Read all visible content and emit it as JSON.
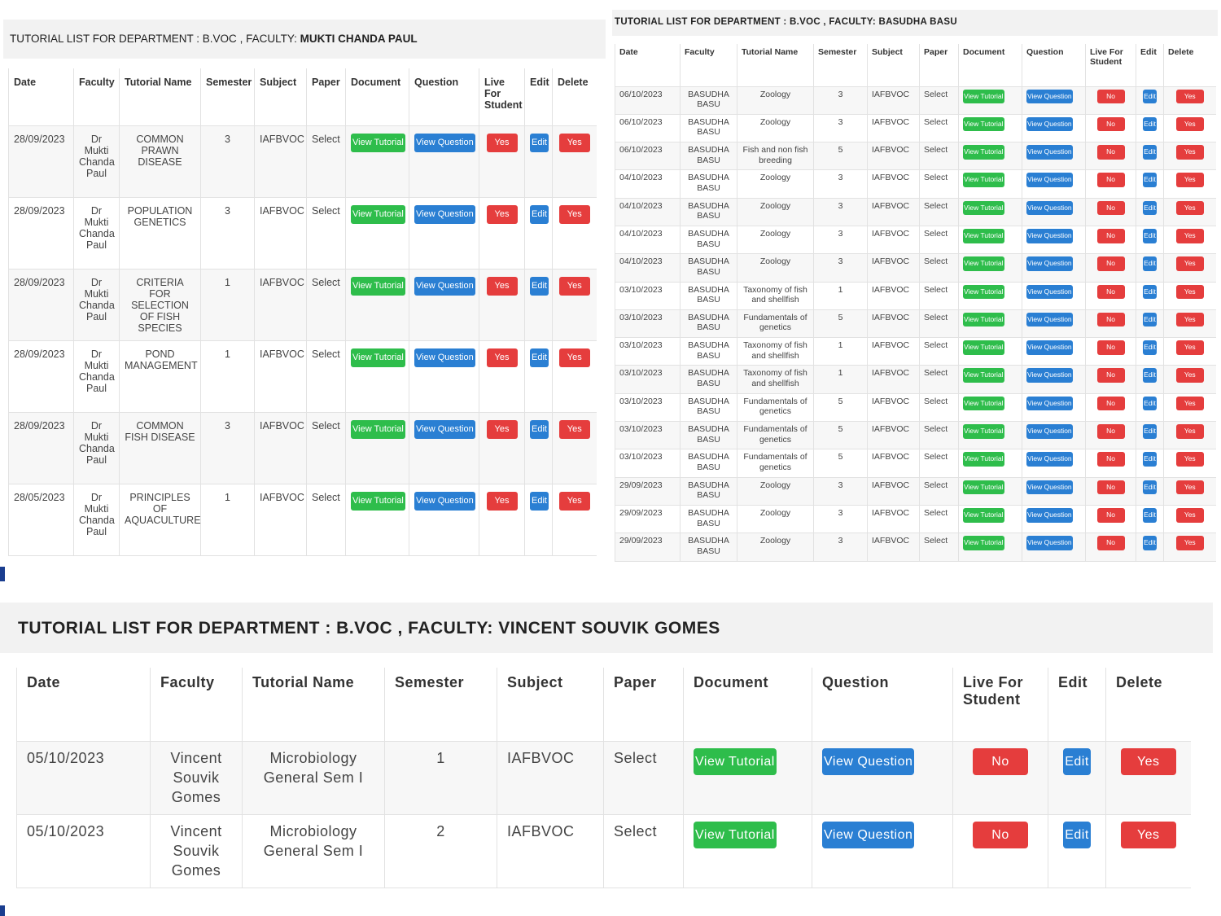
{
  "panels": [
    {
      "title_prefix": "TUTORIAL LIST FOR DEPARTMENT : ",
      "title_dept": "B.VOC",
      "title_sep": " , FACULTY: ",
      "title_faculty": "MUKTI CHANDA PAUL",
      "headers": [
        "Date",
        "Faculty",
        "Tutorial Name",
        "Semester",
        "Subject",
        "Paper",
        "Document",
        "Question",
        "Live For Student",
        "Edit",
        "Delete"
      ],
      "rows": [
        {
          "date": "28/09/2023",
          "faculty": "Dr Mukti Chanda Paul",
          "tutorial": "COMMON PRAWN DISEASE",
          "semester": "3",
          "subject": "IAFBVOC",
          "paper": "Select",
          "document": "View Tutorial",
          "question": "View Question",
          "live": "Yes",
          "edit": "Edit",
          "delete": "Yes"
        },
        {
          "date": "28/09/2023",
          "faculty": "Dr Mukti Chanda Paul",
          "tutorial": "POPULATION GENETICS",
          "semester": "3",
          "subject": "IAFBVOC",
          "paper": "Select",
          "document": "View Tutorial",
          "question": "View Question",
          "live": "Yes",
          "edit": "Edit",
          "delete": "Yes"
        },
        {
          "date": "28/09/2023",
          "faculty": "Dr Mukti Chanda Paul",
          "tutorial": "CRITERIA FOR SELECTION OF FISH SPECIES",
          "semester": "1",
          "subject": "IAFBVOC",
          "paper": "Select",
          "document": "View Tutorial",
          "question": "View Question",
          "live": "Yes",
          "edit": "Edit",
          "delete": "Yes"
        },
        {
          "date": "28/09/2023",
          "faculty": "Dr Mukti Chanda Paul",
          "tutorial": "POND MANAGEMENT",
          "semester": "1",
          "subject": "IAFBVOC",
          "paper": "Select",
          "document": "View Tutorial",
          "question": "View Question",
          "live": "Yes",
          "edit": "Edit",
          "delete": "Yes"
        },
        {
          "date": "28/09/2023",
          "faculty": "Dr Mukti Chanda Paul",
          "tutorial": "COMMON FISH DISEASE",
          "semester": "3",
          "subject": "IAFBVOC",
          "paper": "Select",
          "document": "View Tutorial",
          "question": "View Question",
          "live": "Yes",
          "edit": "Edit",
          "delete": "Yes"
        },
        {
          "date": "28/05/2023",
          "faculty": "Dr Mukti Chanda Paul",
          "tutorial": "PRINCIPLES OF AQUACULTURE",
          "semester": "1",
          "subject": "IAFBVOC",
          "paper": "Select",
          "document": "View Tutorial",
          "question": "View Question",
          "live": "Yes",
          "edit": "Edit",
          "delete": "Yes"
        }
      ]
    },
    {
      "title_prefix": "TUTORIAL LIST FOR DEPARTMENT : ",
      "title_dept": "B.VOC",
      "title_sep": " , FACULTY: ",
      "title_faculty": "BASUDHA BASU",
      "headers": [
        "Date",
        "Faculty",
        "Tutorial Name",
        "Semester",
        "Subject",
        "Paper",
        "Document",
        "Question",
        "Live For Student",
        "Edit",
        "Delete"
      ],
      "rows": [
        {
          "date": "06/10/2023",
          "faculty": "BASUDHA BASU",
          "tutorial": "Zoology",
          "semester": "3",
          "subject": "IAFBVOC",
          "paper": "Select",
          "document": "View Tutorial",
          "question": "View Question",
          "live": "No",
          "edit": "Edit",
          "delete": "Yes"
        },
        {
          "date": "06/10/2023",
          "faculty": "BASUDHA BASU",
          "tutorial": "Zoology",
          "semester": "3",
          "subject": "IAFBVOC",
          "paper": "Select",
          "document": "View Tutorial",
          "question": "View Question",
          "live": "No",
          "edit": "Edit",
          "delete": "Yes"
        },
        {
          "date": "06/10/2023",
          "faculty": "BASUDHA BASU",
          "tutorial": "Fish and non fish breeding",
          "semester": "5",
          "subject": "IAFBVOC",
          "paper": "Select",
          "document": "View Tutorial",
          "question": "View Question",
          "live": "No",
          "edit": "Edit",
          "delete": "Yes"
        },
        {
          "date": "04/10/2023",
          "faculty": "BASUDHA BASU",
          "tutorial": "Zoology",
          "semester": "3",
          "subject": "IAFBVOC",
          "paper": "Select",
          "document": "View Tutorial",
          "question": "View Question",
          "live": "No",
          "edit": "Edit",
          "delete": "Yes"
        },
        {
          "date": "04/10/2023",
          "faculty": "BASUDHA BASU",
          "tutorial": "Zoology",
          "semester": "3",
          "subject": "IAFBVOC",
          "paper": "Select",
          "document": "View Tutorial",
          "question": "View Question",
          "live": "No",
          "edit": "Edit",
          "delete": "Yes"
        },
        {
          "date": "04/10/2023",
          "faculty": "BASUDHA BASU",
          "tutorial": "Zoology",
          "semester": "3",
          "subject": "IAFBVOC",
          "paper": "Select",
          "document": "View Tutorial",
          "question": "View Question",
          "live": "No",
          "edit": "Edit",
          "delete": "Yes"
        },
        {
          "date": "04/10/2023",
          "faculty": "BASUDHA BASU",
          "tutorial": "Zoology",
          "semester": "3",
          "subject": "IAFBVOC",
          "paper": "Select",
          "document": "View Tutorial",
          "question": "View Question",
          "live": "No",
          "edit": "Edit",
          "delete": "Yes"
        },
        {
          "date": "03/10/2023",
          "faculty": "BASUDHA BASU",
          "tutorial": "Taxonomy of fish and shellfish",
          "semester": "1",
          "subject": "IAFBVOC",
          "paper": "Select",
          "document": "View Tutorial",
          "question": "View Question",
          "live": "No",
          "edit": "Edit",
          "delete": "Yes"
        },
        {
          "date": "03/10/2023",
          "faculty": "BASUDHA BASU",
          "tutorial": "Fundamentals of genetics",
          "semester": "5",
          "subject": "IAFBVOC",
          "paper": "Select",
          "document": "View Tutorial",
          "question": "View Question",
          "live": "No",
          "edit": "Edit",
          "delete": "Yes"
        },
        {
          "date": "03/10/2023",
          "faculty": "BASUDHA BASU",
          "tutorial": "Taxonomy of fish and shellfish",
          "semester": "1",
          "subject": "IAFBVOC",
          "paper": "Select",
          "document": "View Tutorial",
          "question": "View Question",
          "live": "No",
          "edit": "Edit",
          "delete": "Yes"
        },
        {
          "date": "03/10/2023",
          "faculty": "BASUDHA BASU",
          "tutorial": "Taxonomy of fish and shellfish",
          "semester": "1",
          "subject": "IAFBVOC",
          "paper": "Select",
          "document": "View Tutorial",
          "question": "View Question",
          "live": "No",
          "edit": "Edit",
          "delete": "Yes"
        },
        {
          "date": "03/10/2023",
          "faculty": "BASUDHA BASU",
          "tutorial": "Fundamentals of genetics",
          "semester": "5",
          "subject": "IAFBVOC",
          "paper": "Select",
          "document": "View Tutorial",
          "question": "View Question",
          "live": "No",
          "edit": "Edit",
          "delete": "Yes"
        },
        {
          "date": "03/10/2023",
          "faculty": "BASUDHA BASU",
          "tutorial": "Fundamentals of genetics",
          "semester": "5",
          "subject": "IAFBVOC",
          "paper": "Select",
          "document": "View Tutorial",
          "question": "View Question",
          "live": "No",
          "edit": "Edit",
          "delete": "Yes"
        },
        {
          "date": "03/10/2023",
          "faculty": "BASUDHA BASU",
          "tutorial": "Fundamentals of genetics",
          "semester": "5",
          "subject": "IAFBVOC",
          "paper": "Select",
          "document": "View Tutorial",
          "question": "View Question",
          "live": "No",
          "edit": "Edit",
          "delete": "Yes"
        },
        {
          "date": "29/09/2023",
          "faculty": "BASUDHA BASU",
          "tutorial": "Zoology",
          "semester": "3",
          "subject": "IAFBVOC",
          "paper": "Select",
          "document": "View Tutorial",
          "question": "View Question",
          "live": "No",
          "edit": "Edit",
          "delete": "Yes"
        },
        {
          "date": "29/09/2023",
          "faculty": "BASUDHA BASU",
          "tutorial": "Zoology",
          "semester": "3",
          "subject": "IAFBVOC",
          "paper": "Select",
          "document": "View Tutorial",
          "question": "View Question",
          "live": "No",
          "edit": "Edit",
          "delete": "Yes"
        },
        {
          "date": "29/09/2023",
          "faculty": "BASUDHA BASU",
          "tutorial": "Zoology",
          "semester": "3",
          "subject": "IAFBVOC",
          "paper": "Select",
          "document": "View Tutorial",
          "question": "View Question",
          "live": "No",
          "edit": "Edit",
          "delete": "Yes"
        }
      ]
    },
    {
      "title_prefix": "TUTORIAL LIST FOR DEPARTMENT : ",
      "title_dept": "B.VOC",
      "title_sep": " , FACULTY: ",
      "title_faculty": "VINCENT SOUVIK GOMES",
      "headers": [
        "Date",
        "Faculty",
        "Tutorial Name",
        "Semester",
        "Subject",
        "Paper",
        "Document",
        "Question",
        "Live For Student",
        "Edit",
        "Delete"
      ],
      "rows": [
        {
          "date": "05/10/2023",
          "faculty": "Vincent Souvik Gomes",
          "tutorial": "Microbiology General Sem I",
          "semester": "1",
          "subject": "IAFBVOC",
          "paper": "Select",
          "document": "View Tutorial",
          "question": "View Question",
          "live": "No",
          "edit": "Edit",
          "delete": "Yes"
        },
        {
          "date": "05/10/2023",
          "faculty": "Vincent Souvik Gomes",
          "tutorial": "Microbiology General Sem I",
          "semester": "2",
          "subject": "IAFBVOC",
          "paper": "Select",
          "document": "View Tutorial",
          "question": "View Question",
          "live": "No",
          "edit": "Edit",
          "delete": "Yes"
        }
      ]
    }
  ],
  "colors": {
    "document_button": "#2ebd4b",
    "question_button": "#2a7fd3",
    "live_button": "#e53d3d",
    "edit_button": "#2a7fd3",
    "delete_button": "#e53d3d"
  }
}
